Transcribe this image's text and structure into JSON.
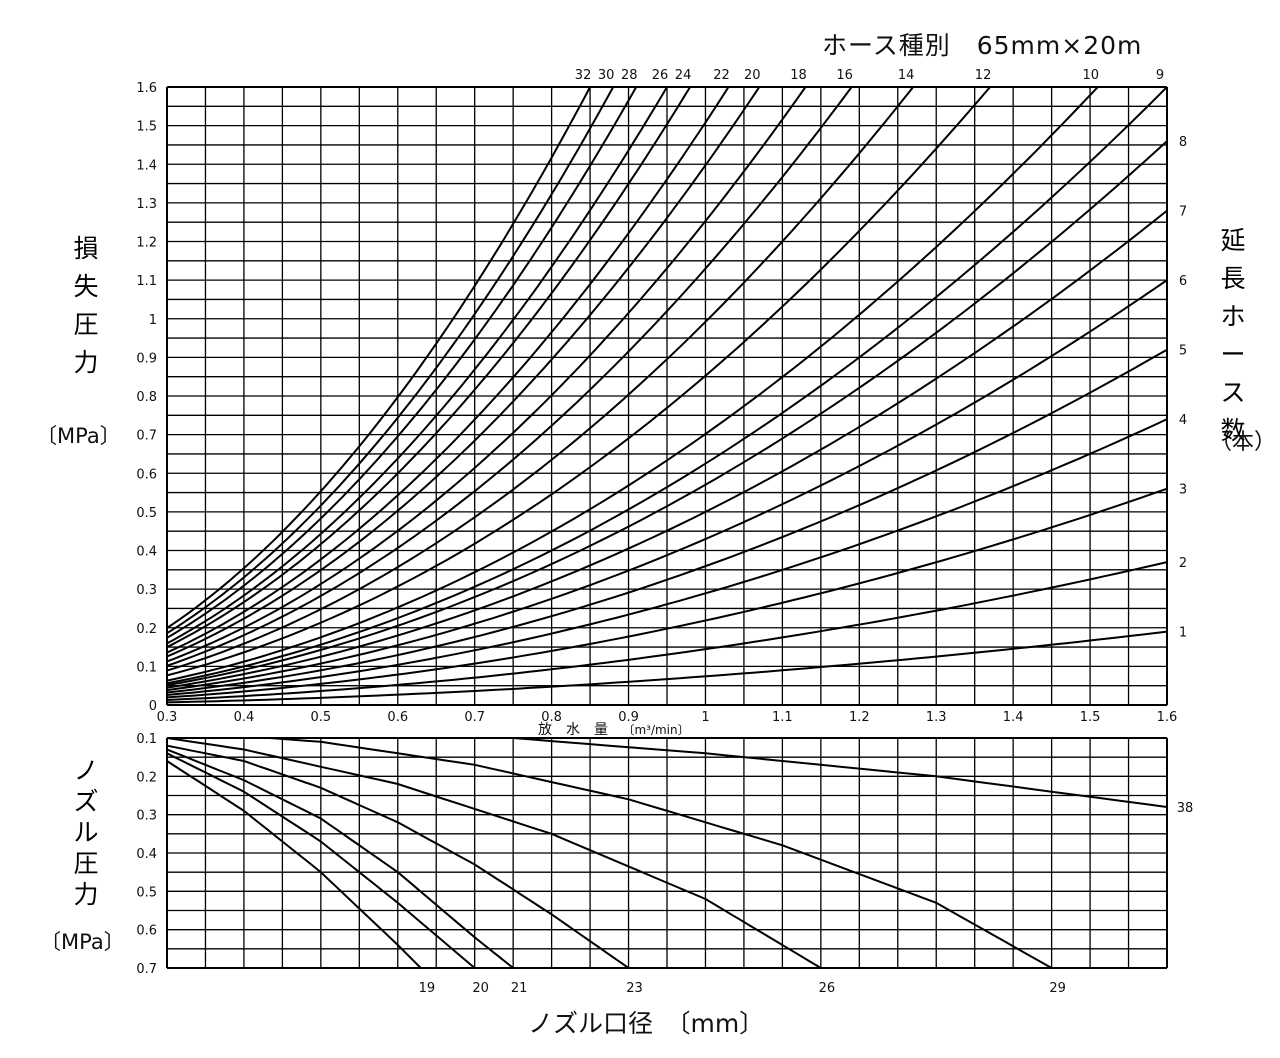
{
  "header": {
    "hose_spec": "ホース種別　65mm×20m"
  },
  "left_axis": {
    "title_chars": [
      "損",
      "失",
      "圧",
      "力"
    ],
    "unit": "〔MPa〕"
  },
  "right_axis": {
    "title_chars": [
      "延",
      "長",
      "ホ",
      "ー",
      "ス",
      "数"
    ],
    "unit": "（本）"
  },
  "nozzle_axis": {
    "title_chars": [
      "ノ",
      "ズ",
      "ル",
      "圧",
      "力"
    ],
    "unit": "〔MPa〕"
  },
  "xlabel": "放　水　量",
  "xunit": "〔m³/min〕",
  "bottom_xlabel": "ノズル口径　〔mm〕",
  "chart_data": [
    {
      "type": "line",
      "xlabel": "放水量 (m³/min)",
      "ylabel": "損失圧力 (MPa)",
      "xlim": [
        0.3,
        1.6
      ],
      "ylim": [
        0,
        1.6
      ],
      "x_ticks": [
        "0.3",
        "0.4",
        "0.5",
        "0.6",
        "0.7",
        "0.8",
        "0.9",
        "1",
        "1.1",
        "1.2",
        "1.3",
        "1.4",
        "1.5",
        "1.6"
      ],
      "y_ticks": [
        "0",
        "0.1",
        "0.2",
        "0.3",
        "0.4",
        "0.5",
        "0.6",
        "0.7",
        "0.8",
        "0.9",
        "1",
        "1.1",
        "1.2",
        "1.3",
        "1.4",
        "1.5",
        "1.6"
      ],
      "grid": true,
      "series_label_text": "延長ホース数",
      "series": [
        {
          "name": "1",
          "end_y": 0.19
        },
        {
          "name": "2",
          "end_y": 0.37
        },
        {
          "name": "3",
          "end_y": 0.56
        },
        {
          "name": "4",
          "end_y": 0.74
        },
        {
          "name": "5",
          "end_y": 0.92
        },
        {
          "name": "6",
          "end_y": 1.1
        },
        {
          "name": "7",
          "end_y": 1.28
        },
        {
          "name": "8",
          "end_y": 1.46
        },
        {
          "name": "9",
          "end_x": 1.6
        },
        {
          "name": "10",
          "end_x": 1.51
        },
        {
          "name": "12",
          "end_x": 1.37
        },
        {
          "name": "14",
          "end_x": 1.27
        },
        {
          "name": "16",
          "end_x": 1.19
        },
        {
          "name": "18",
          "end_x": 1.13
        },
        {
          "name": "20",
          "end_x": 1.07
        },
        {
          "name": "22",
          "end_x": 1.03
        },
        {
          "name": "24",
          "end_x": 0.98
        },
        {
          "name": "26",
          "end_x": 0.95
        },
        {
          "name": "28",
          "end_x": 0.91
        },
        {
          "name": "30",
          "end_x": 0.88
        },
        {
          "name": "32",
          "end_x": 0.85
        }
      ]
    },
    {
      "type": "line",
      "xlabel": "放水量 (m³/min)",
      "ylabel": "ノズル圧力 (MPa)",
      "xlim": [
        0.3,
        1.6
      ],
      "ylim": [
        0.1,
        0.7
      ],
      "y_ticks": [
        "0.1",
        "0.2",
        "0.3",
        "0.4",
        "0.5",
        "0.6",
        "0.7"
      ],
      "grid": true,
      "series_label_text": "ノズル口径 (mm)",
      "series": [
        {
          "name": "19",
          "points": [
            [
              0.3,
              0.16
            ],
            [
              0.4,
              0.29
            ],
            [
              0.5,
              0.45
            ],
            [
              0.6,
              0.64
            ],
            [
              0.63,
              0.7
            ]
          ]
        },
        {
          "name": "20",
          "points": [
            [
              0.3,
              0.14
            ],
            [
              0.4,
              0.24
            ],
            [
              0.5,
              0.37
            ],
            [
              0.6,
              0.53
            ],
            [
              0.7,
              0.7
            ]
          ]
        },
        {
          "name": "21",
          "points": [
            [
              0.3,
              0.13
            ],
            [
              0.4,
              0.21
            ],
            [
              0.5,
              0.31
            ],
            [
              0.6,
              0.45
            ],
            [
              0.7,
              0.62
            ],
            [
              0.75,
              0.7
            ]
          ]
        },
        {
          "name": "23",
          "points": [
            [
              0.3,
              0.12
            ],
            [
              0.4,
              0.16
            ],
            [
              0.5,
              0.23
            ],
            [
              0.6,
              0.32
            ],
            [
              0.7,
              0.43
            ],
            [
              0.8,
              0.56
            ],
            [
              0.9,
              0.7
            ]
          ]
        },
        {
          "name": "26",
          "points": [
            [
              0.3,
              0.1
            ],
            [
              0.4,
              0.13
            ],
            [
              0.6,
              0.22
            ],
            [
              0.8,
              0.35
            ],
            [
              1.0,
              0.52
            ],
            [
              1.15,
              0.7
            ]
          ]
        },
        {
          "name": "29",
          "points": [
            [
              0.3,
              0.08
            ],
            [
              0.5,
              0.11
            ],
            [
              0.7,
              0.17
            ],
            [
              0.9,
              0.26
            ],
            [
              1.1,
              0.38
            ],
            [
              1.3,
              0.53
            ],
            [
              1.45,
              0.7
            ]
          ]
        },
        {
          "name": "38",
          "points": [
            [
              0.3,
              0.05
            ],
            [
              0.5,
              0.08
            ],
            [
              0.75,
              0.1
            ],
            [
              1.0,
              0.14
            ],
            [
              1.3,
              0.2
            ],
            [
              1.6,
              0.28
            ]
          ]
        }
      ]
    }
  ]
}
